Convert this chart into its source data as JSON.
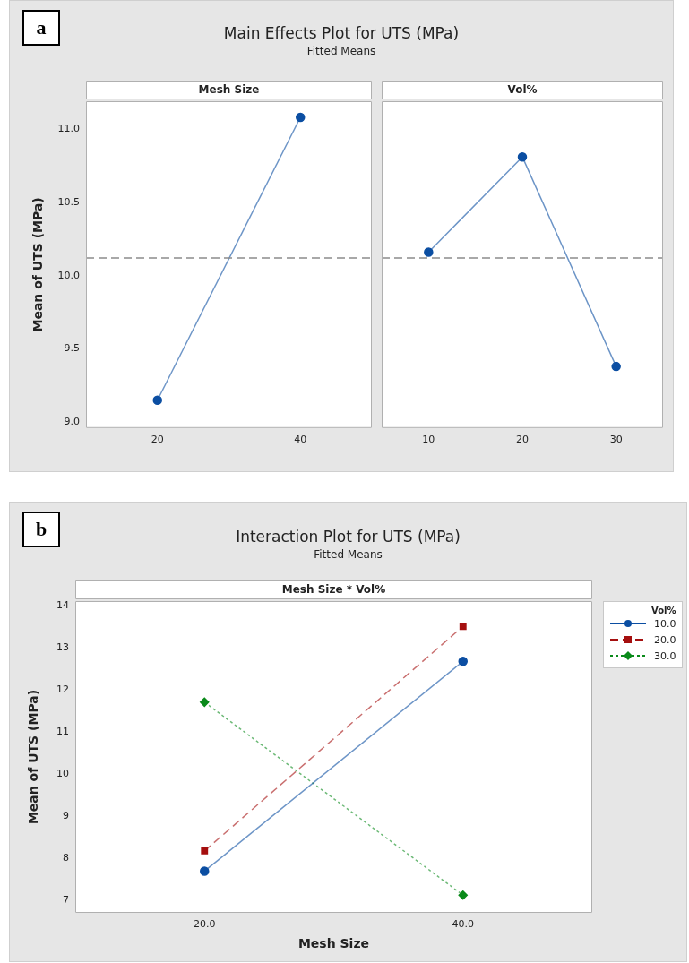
{
  "chart_data": [
    {
      "type": "line",
      "title": "Main Effects Plot for UTS (MPa)",
      "subtitle": "Fitted Means",
      "xlabel": "Mesh Size",
      "ylabel": "Mean of UTS (MPa)",
      "annotations": [
        "a"
      ],
      "categories": [
        "20",
        "40"
      ],
      "series": [
        {
          "color": "#0b4ea2",
          "values": [
            9.15,
            11.08
          ]
        }
      ],
      "ylim": [
        8.96,
        11.19
      ],
      "yticks": [
        {
          "value": 9,
          "label": "9.0"
        },
        9.5,
        {
          "value": 10,
          "label": "10.0"
        },
        10.5,
        {
          "value": 11,
          "label": "11.0"
        }
      ],
      "ref_lines": [
        {
          "axis": "y",
          "value": 10.12,
          "line_style": "dashed",
          "color": "#8c8c8c"
        }
      ],
      "marker": "circle"
    },
    {
      "type": "line",
      "xlabel": "Vol%",
      "categories": [
        "10",
        "20",
        "30"
      ],
      "series": [
        {
          "color": "#0b4ea2",
          "values": [
            10.16,
            10.81,
            9.38
          ]
        }
      ],
      "ylim": [
        8.96,
        11.19
      ],
      "tick_labels": "x",
      "ref_lines": [
        {
          "axis": "y",
          "value": 10.12,
          "line_style": "dashed",
          "color": "#8c8c8c"
        }
      ],
      "marker": "circle"
    },
    {
      "type": "line",
      "title": "Interaction Plot for UTS (MPa)",
      "subtitle": "Fitted Means",
      "xlabel": "Mesh Size",
      "ylabel": "Mean of UTS (MPa)",
      "legend_title": "Vol%",
      "annotations": [
        "b",
        "Mesh Size * Vol%"
      ],
      "categories": [
        "20.0",
        "40.0"
      ],
      "series": [
        {
          "name": "10.0",
          "color": "#0b4ea2",
          "values": [
            7.69,
            12.67
          ],
          "marker": "circle",
          "line_style": "solid"
        },
        {
          "name": "20.0",
          "color": "#a50f0f",
          "values": [
            8.17,
            13.5
          ],
          "marker": "square",
          "line_style": "dashed"
        },
        {
          "name": "30.0",
          "color": "#0a8a1a",
          "values": [
            11.7,
            7.12
          ],
          "marker": "diamond",
          "line_style": "dotted"
        }
      ],
      "ylim": [
        6.7,
        14.1
      ],
      "yticks": [
        7,
        8,
        9,
        10,
        11,
        12,
        13,
        14
      ],
      "legend": "right"
    }
  ]
}
